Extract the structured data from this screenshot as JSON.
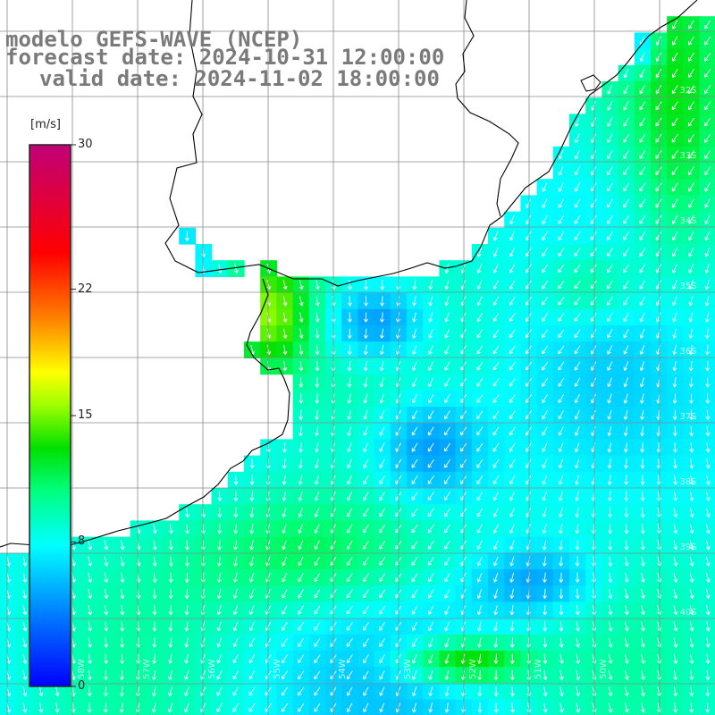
{
  "title": {
    "model": "modelo GEFS-WAVE (NCEP)",
    "forecast": "forecast date: 2024-10-31 12:00:00",
    "valid": "valid date: 2024-11-02 18:00:00"
  },
  "legend": {
    "unit": "[m/s]",
    "ticks": [
      "30",
      "22",
      "15",
      "8",
      "0"
    ],
    "tick_values": [
      30,
      22,
      15,
      8,
      0
    ],
    "range": [
      0,
      30
    ],
    "colormap": [
      "#0000ff",
      "#0070ff",
      "#00e0ff",
      "#00ff80",
      "#00e000",
      "#80ff00",
      "#ffff00",
      "#ff8000",
      "#ff0000",
      "#c00070"
    ]
  },
  "map": {
    "lat_labels": [
      "32S",
      "33S",
      "34S",
      "35S",
      "36S",
      "37S",
      "38S",
      "39S",
      "40S"
    ],
    "lon_labels": [
      "58W",
      "57W",
      "56W",
      "55W",
      "54W",
      "53W",
      "52W",
      "51W",
      "50W"
    ],
    "colors": {
      "coastline": "#000000",
      "grid": "#808080",
      "arrows": "#ffffff"
    }
  }
}
